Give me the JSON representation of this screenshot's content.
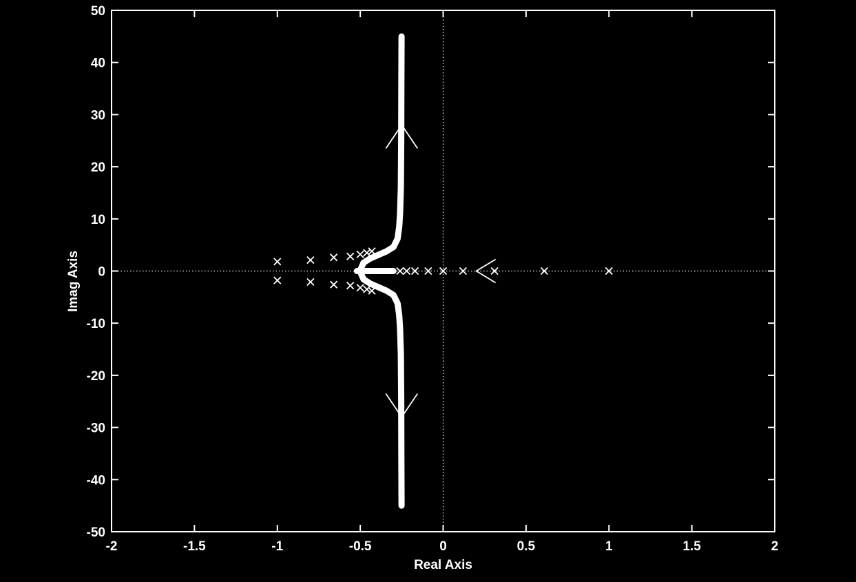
{
  "chart_data": {
    "type": "scatter",
    "title": "",
    "xlabel": "Real Axis",
    "ylabel": "Imag Axis",
    "xlim": [
      -2,
      2
    ],
    "ylim": [
      -50,
      50
    ],
    "xticks": [
      -2,
      -1.5,
      -1,
      -0.5,
      0,
      0.5,
      1,
      1.5,
      2
    ],
    "xtick_labels": [
      "-2",
      "-1.5",
      "-1",
      "-0.5",
      "0",
      "0.5",
      "1",
      "1.5",
      "2"
    ],
    "yticks": [
      -50,
      -40,
      -30,
      -20,
      -10,
      0,
      10,
      20,
      30,
      40,
      50
    ],
    "ytick_labels": [
      "-50",
      "-40",
      "-30",
      "-20",
      "-10",
      "0",
      "10",
      "20",
      "30",
      "40",
      "50"
    ],
    "grid": false,
    "reference_lines": {
      "x": 0,
      "y": 0,
      "style": "dotted"
    },
    "colors": {
      "background": "#000000",
      "foreground": "#ffffff"
    },
    "series": [
      {
        "kind": "locus-branch",
        "points": [
          [
            -0.5,
            0.15
          ],
          [
            -0.48,
            1.6
          ],
          [
            -0.44,
            2.4
          ],
          [
            -0.39,
            3.1
          ],
          [
            -0.34,
            3.8
          ],
          [
            -0.3,
            4.6
          ],
          [
            -0.275,
            6.2
          ],
          [
            -0.265,
            8.5
          ],
          [
            -0.26,
            11
          ],
          [
            -0.255,
            16
          ],
          [
            -0.253,
            25
          ],
          [
            -0.252,
            35
          ],
          [
            -0.251,
            45
          ]
        ]
      },
      {
        "kind": "locus-branch",
        "points": [
          [
            -0.5,
            -0.15
          ],
          [
            -0.48,
            -1.6
          ],
          [
            -0.44,
            -2.4
          ],
          [
            -0.39,
            -3.1
          ],
          [
            -0.34,
            -3.8
          ],
          [
            -0.3,
            -4.6
          ],
          [
            -0.275,
            -6.2
          ],
          [
            -0.265,
            -8.5
          ],
          [
            -0.26,
            -11
          ],
          [
            -0.255,
            -16
          ],
          [
            -0.253,
            -25
          ],
          [
            -0.252,
            -35
          ],
          [
            -0.251,
            -45
          ]
        ]
      },
      {
        "kind": "locus-branch-real",
        "points": [
          [
            -0.52,
            0
          ],
          [
            -0.3,
            0
          ]
        ]
      }
    ],
    "markers_x": [
      [
        -1,
        1.8
      ],
      [
        -1,
        -1.8
      ],
      [
        -0.8,
        2.1
      ],
      [
        -0.8,
        -2.1
      ],
      [
        -0.66,
        2.6
      ],
      [
        -0.66,
        -2.6
      ],
      [
        -0.56,
        2.8
      ],
      [
        -0.56,
        -2.8
      ],
      [
        -0.5,
        3.2
      ],
      [
        -0.5,
        -3.2
      ],
      [
        -0.46,
        3.5
      ],
      [
        -0.46,
        -3.5
      ],
      [
        -0.43,
        3.8
      ],
      [
        -0.43,
        -3.8
      ],
      [
        -0.26,
        0
      ],
      [
        -0.22,
        0
      ],
      [
        -0.17,
        0
      ],
      [
        -0.09,
        0
      ],
      [
        0,
        0
      ],
      [
        0.12,
        0
      ],
      [
        0.31,
        0
      ],
      [
        0.61,
        0
      ],
      [
        1,
        0
      ]
    ],
    "direction_arrows": [
      {
        "x": -0.25,
        "y": 28,
        "dir": "up"
      },
      {
        "x": -0.25,
        "y": -28,
        "dir": "down"
      },
      {
        "x": 0.2,
        "y": 0,
        "dir": "left"
      }
    ]
  }
}
